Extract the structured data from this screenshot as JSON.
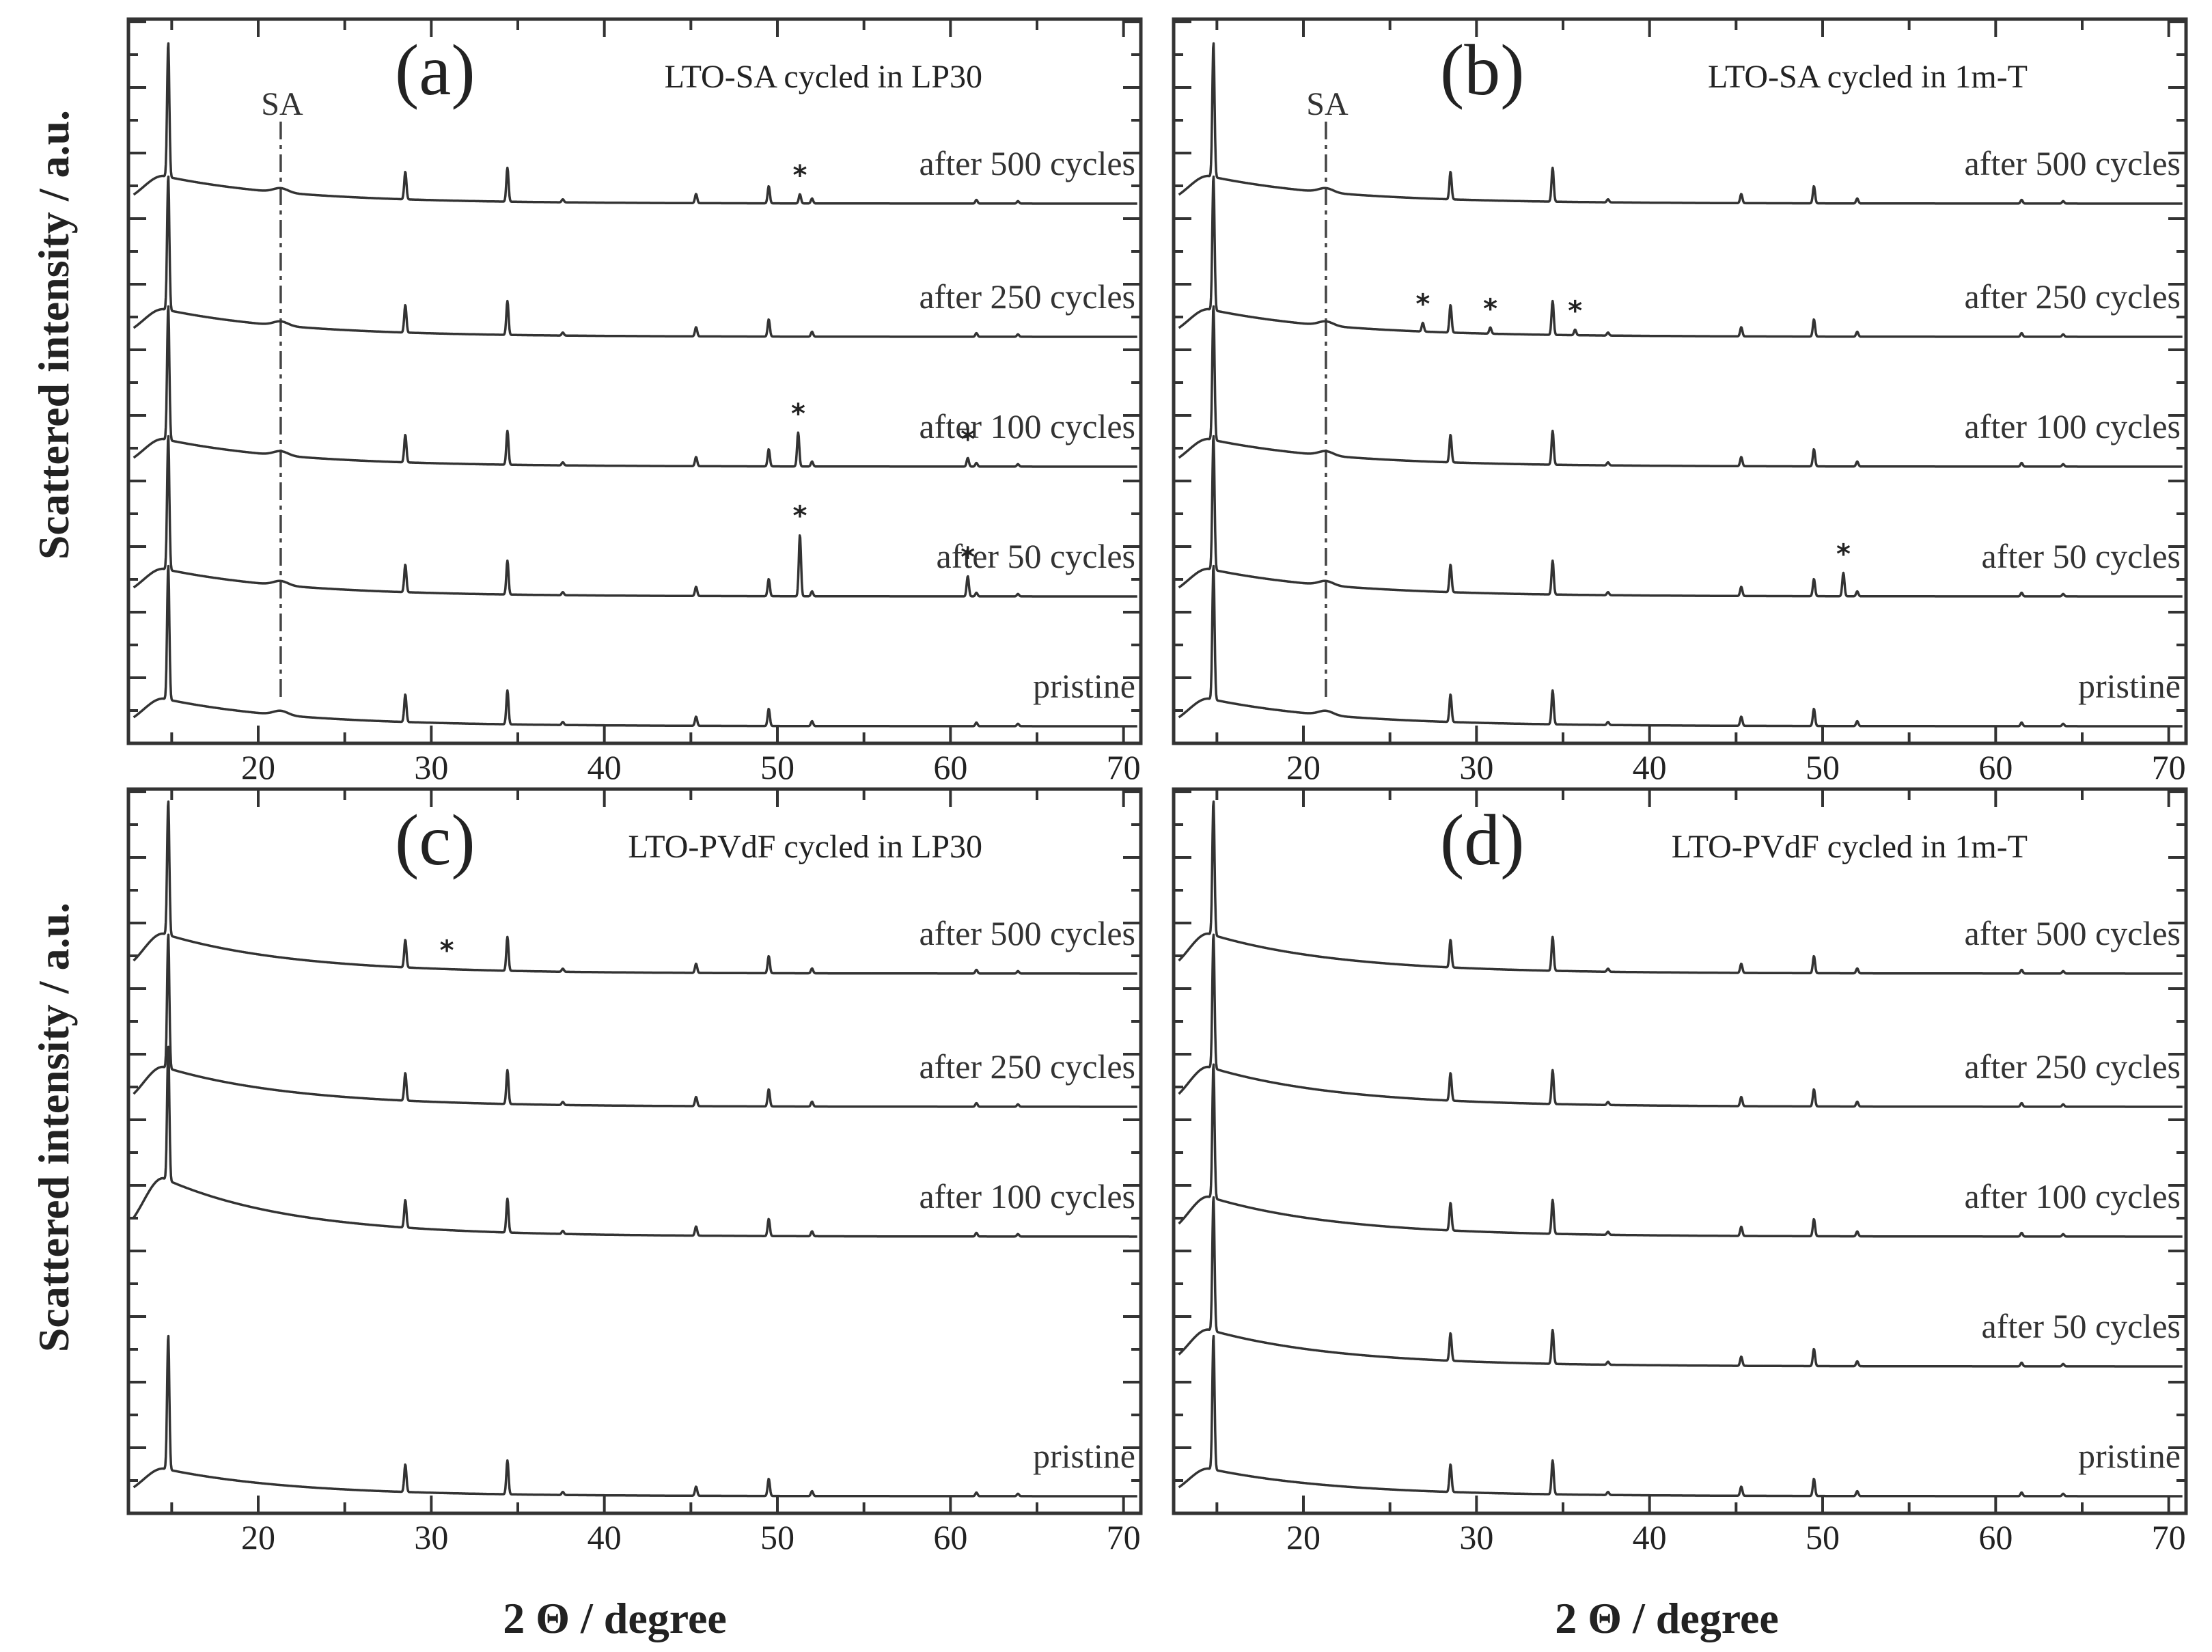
{
  "chart_data": [
    {
      "type": "line",
      "panel_label": "(a)",
      "title": "LTO-SA cycled in LP30",
      "xlabel": "2 Θ / degree",
      "ylabel": "Scattered intensity / a.u.",
      "xlim": [
        12.5,
        71
      ],
      "x_ticks": [
        20,
        30,
        40,
        50,
        60,
        70
      ],
      "sa_marker": {
        "label": "SA",
        "x": 21.3
      },
      "series": [
        {
          "name": "after 500 cycles",
          "level": 4,
          "hump": 0.45,
          "stars": [
            51.3
          ],
          "starred_peaks": {
            "51.3": 0.15
          }
        },
        {
          "name": "after 250 cycles",
          "level": 3,
          "hump": 0.45,
          "stars": [],
          "starred_peaks": {}
        },
        {
          "name": "after 100 cycles",
          "level": 2,
          "hump": 0.45,
          "stars": [
            51.2,
            61.0
          ],
          "starred_peaks": {
            "51.2": 0.55,
            "61.0": 0.14
          }
        },
        {
          "name": "after 50 cycles",
          "level": 1,
          "hump": 0.45,
          "stars": [
            51.3,
            61.0
          ],
          "starred_peaks": {
            "51.3": 1.0,
            "61.0": 0.33
          }
        },
        {
          "name": "pristine",
          "level": 0,
          "hump": 0.45,
          "stars": [],
          "starred_peaks": {}
        }
      ]
    },
    {
      "type": "line",
      "panel_label": "(b)",
      "title": "LTO-SA cycled in 1m-T",
      "xlabel": "2 Θ / degree",
      "ylabel": "",
      "xlim": [
        12.5,
        71
      ],
      "x_ticks": [
        20,
        30,
        40,
        50,
        60,
        70
      ],
      "sa_marker": {
        "label": "SA",
        "x": 21.3
      },
      "series": [
        {
          "name": "after 500 cycles",
          "level": 4,
          "hump": 0.45,
          "stars": [],
          "starred_peaks": {}
        },
        {
          "name": "after 250 cycles",
          "level": 3,
          "hump": 0.45,
          "stars": [
            26.9,
            30.8,
            35.7
          ],
          "starred_peaks": {
            "26.9": 0.14,
            "30.8": 0.1,
            "35.7": 0.09
          }
        },
        {
          "name": "after 100 cycles",
          "level": 2,
          "hump": 0.45,
          "stars": [],
          "starred_peaks": {}
        },
        {
          "name": "after 50 cycles",
          "level": 1,
          "hump": 0.45,
          "stars": [
            51.2
          ],
          "starred_peaks": {
            "51.2": 0.38
          }
        },
        {
          "name": "pristine",
          "level": 0,
          "hump": 0.45,
          "stars": [],
          "starred_peaks": {}
        }
      ]
    },
    {
      "type": "line",
      "panel_label": "(c)",
      "title": "LTO-PVdF cycled in LP30",
      "xlabel": "2 Θ / degree",
      "ylabel": "Scattered intensity / a.u.",
      "xlim": [
        12.5,
        71
      ],
      "x_ticks": [
        20,
        30,
        40,
        50,
        60,
        70
      ],
      "sa_marker": null,
      "series": [
        {
          "name": "after 500 cycles",
          "level": 4,
          "hump": 0.65,
          "stars": [
            30.9
          ],
          "starred_peaks": {}
        },
        {
          "name": "after 250 cycles",
          "level": 3,
          "hump": 0.65,
          "stars": [],
          "starred_peaks": {}
        },
        {
          "name": "after 100 cycles",
          "level": 2,
          "hump": 0.95,
          "stars": [],
          "starred_peaks": {}
        },
        {
          "name": "pristine",
          "level": 0,
          "hump": 0.45,
          "stars": [],
          "starred_peaks": {}
        }
      ]
    },
    {
      "type": "line",
      "panel_label": "(d)",
      "title": "LTO-PVdF cycled in 1m-T",
      "xlabel": "2 Θ / degree",
      "ylabel": "",
      "xlim": [
        12.5,
        71
      ],
      "x_ticks": [
        20,
        30,
        40,
        50,
        60,
        70
      ],
      "sa_marker": null,
      "series": [
        {
          "name": "after 500 cycles",
          "level": 4,
          "hump": 0.65,
          "stars": [],
          "starred_peaks": {}
        },
        {
          "name": "after 250 cycles",
          "level": 3,
          "hump": 0.65,
          "stars": [],
          "starred_peaks": {}
        },
        {
          "name": "after 100 cycles",
          "level": 2,
          "hump": 0.65,
          "stars": [],
          "starred_peaks": {}
        },
        {
          "name": "after 50 cycles",
          "level": 1,
          "hump": 0.6,
          "stars": [],
          "starred_peaks": {}
        },
        {
          "name": "pristine",
          "level": 0,
          "hump": 0.45,
          "stars": [],
          "starred_peaks": {}
        }
      ]
    }
  ],
  "lto_reflections": [
    {
      "x": 14.8,
      "h": 2.2
    },
    {
      "x": 28.5,
      "h": 0.45
    },
    {
      "x": 34.4,
      "h": 0.55
    },
    {
      "x": 37.6,
      "h": 0.05
    },
    {
      "x": 45.3,
      "h": 0.15
    },
    {
      "x": 49.5,
      "h": 0.28
    },
    {
      "x": 52.0,
      "h": 0.08
    },
    {
      "x": 61.5,
      "h": 0.06
    },
    {
      "x": 63.9,
      "h": 0.04
    }
  ]
}
